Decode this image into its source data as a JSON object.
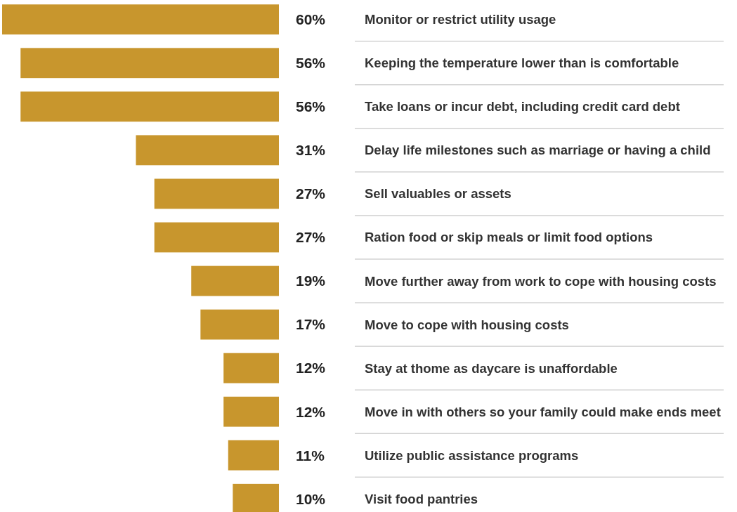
{
  "chart_data": {
    "type": "bar",
    "orientation": "horizontal",
    "color": "#c8962d",
    "categories": [
      "Monitor or restrict utility usage",
      "Keeping the temperature lower than is comfortable",
      "Take loans or incur debt, including credit card debt",
      "Delay life milestones such as marriage or having a child",
      "Sell valuables or assets",
      "Ration food or skip meals or limit food options",
      "Move further away from work to cope with housing costs",
      "Move to cope with housing costs",
      "Stay at thome as daycare is unaffordable",
      "Move in with others so your family could make ends meet",
      "Utilize public assistance programs",
      "Visit food pantries"
    ],
    "values": [
      60,
      56,
      56,
      31,
      27,
      27,
      19,
      17,
      12,
      12,
      11,
      10
    ],
    "value_labels": [
      "60%",
      "56%",
      "56%",
      "31%",
      "27%",
      "27%",
      "19%",
      "17%",
      "12%",
      "12%",
      "11%",
      "10%"
    ]
  }
}
